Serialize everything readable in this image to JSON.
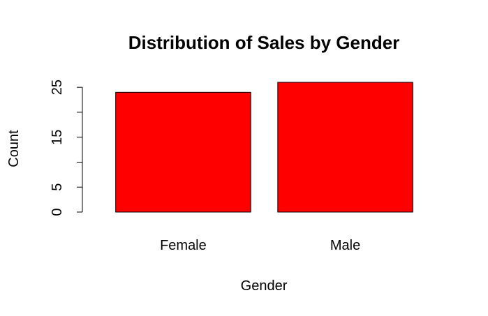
{
  "chart_data": {
    "type": "bar",
    "title": "Distribution of Sales by Gender",
    "xlabel": "Gender",
    "ylabel": "Count",
    "categories": [
      "Female",
      "Male"
    ],
    "values": [
      24,
      26
    ],
    "ylim": [
      0,
      26
    ],
    "yticks": [
      0,
      5,
      15,
      25
    ],
    "ytick_marks": [
      0,
      5,
      10,
      15,
      20,
      25
    ],
    "bar_color": "#ff0000",
    "grid": false,
    "legend": "none"
  }
}
